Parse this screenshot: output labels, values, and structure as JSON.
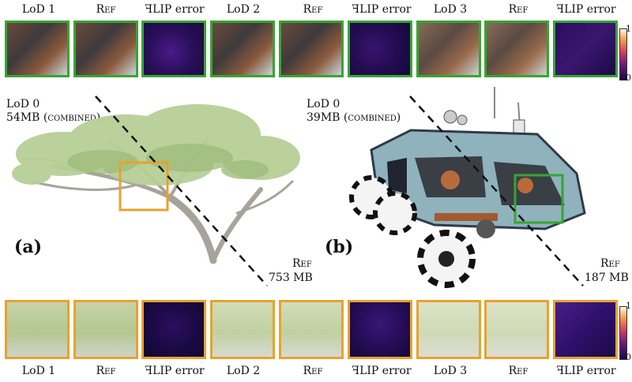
{
  "top_row": {
    "labels": [
      "LoD 1",
      "Ref",
      "ꟻLIP error",
      "LoD 2",
      "Ref",
      "ꟻLIP error",
      "LoD 3",
      "Ref",
      "ꟻLIP error"
    ],
    "colorbar": {
      "max": "1",
      "min": "0"
    }
  },
  "bottom_row": {
    "labels": [
      "LoD 1",
      "Ref",
      "ꟻLIP error",
      "LoD 2",
      "Ref",
      "ꟻLIP error",
      "LoD 3",
      "Ref",
      "ꟻLIP error"
    ],
    "colorbar": {
      "max": "1",
      "min": "0"
    }
  },
  "panel_a": {
    "letter": "(a)",
    "lod_label": "LoD 0",
    "lod_size": "54MB",
    "lod_note": "(combined)",
    "ref_label": "Ref",
    "ref_size": "753 MB",
    "inset_color": "#e8a22e"
  },
  "panel_b": {
    "letter": "(b)",
    "lod_label": "LoD 0",
    "lod_size": "39MB",
    "lod_note": "(combined)",
    "ref_label": "Ref",
    "ref_size": "187 MB",
    "inset_color": "#3aa335"
  }
}
